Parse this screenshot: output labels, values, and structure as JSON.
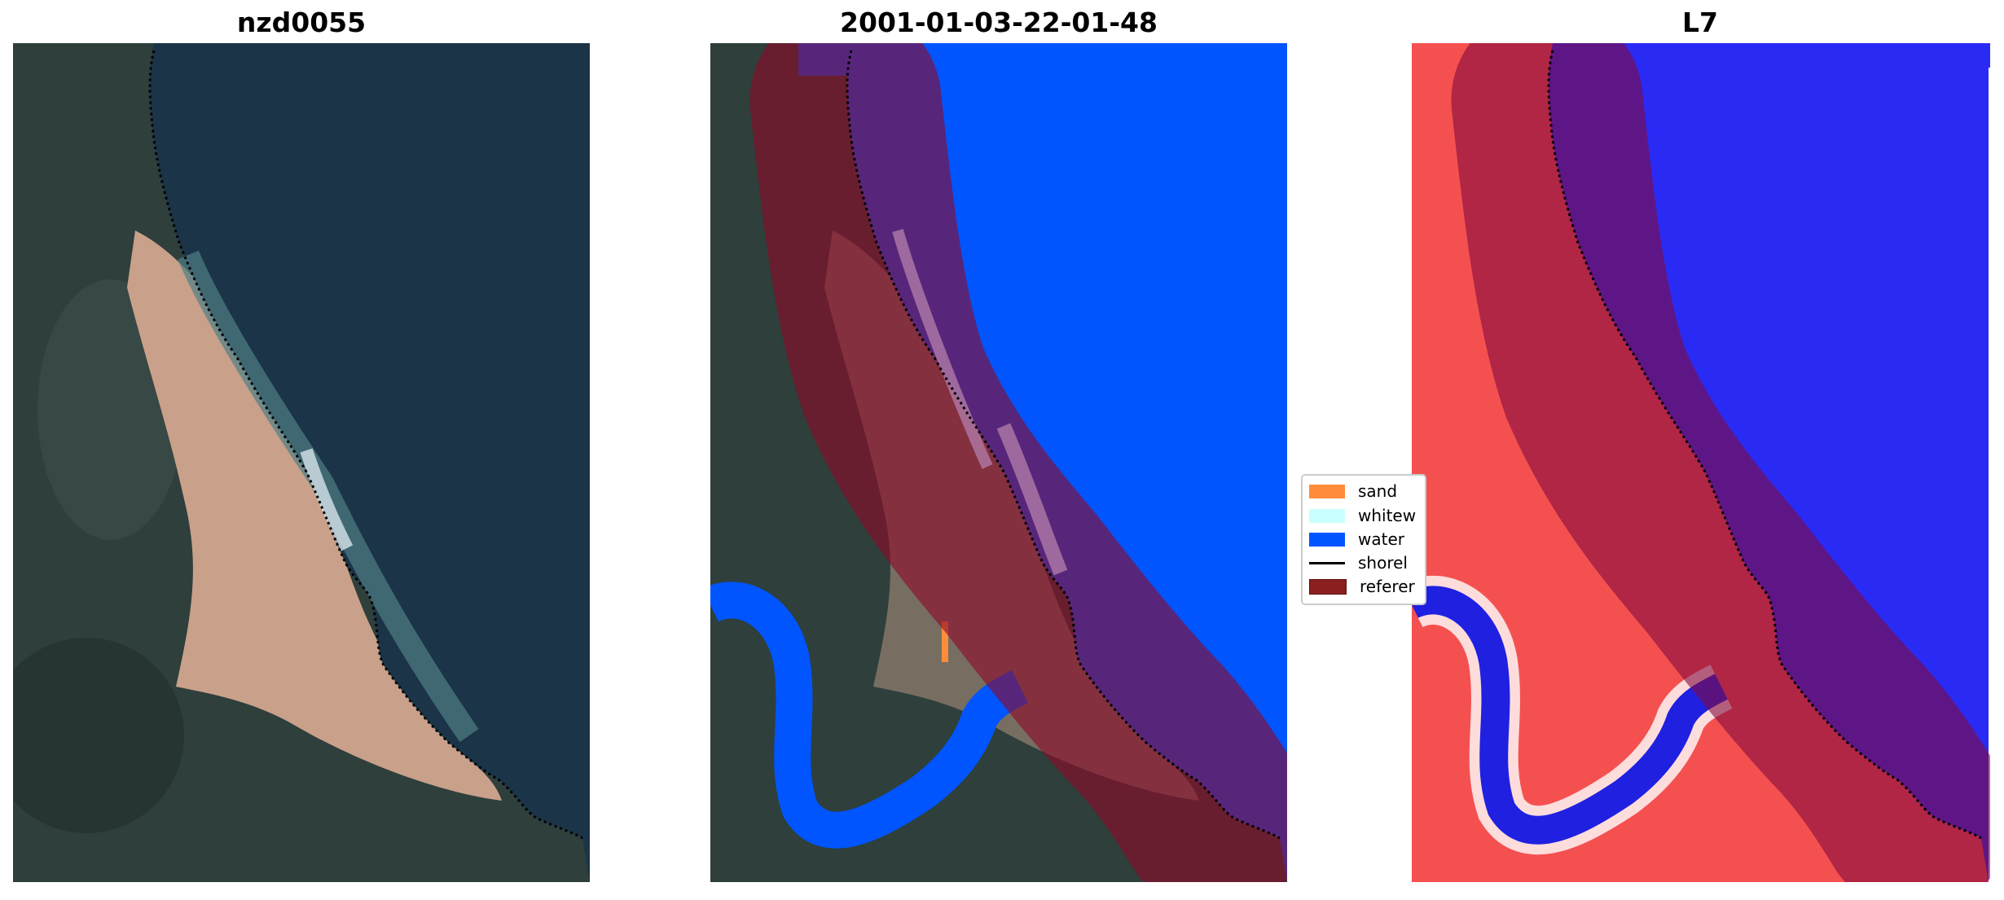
{
  "panels": [
    {
      "title": "nzd0055",
      "kind": "rgb-image"
    },
    {
      "title": "2001-01-03-22-01-48",
      "kind": "classified-image"
    },
    {
      "title": "L7",
      "kind": "index-image"
    }
  ],
  "legend": {
    "items": [
      {
        "label": "sand",
        "color": "#ff8c3a"
      },
      {
        "label": "whitew",
        "color": "#c8ffff"
      },
      {
        "label": "water",
        "color": "#0055ff"
      },
      {
        "label": "shorel",
        "color": "#000000"
      },
      {
        "label": "referer",
        "color": "#8b2020"
      }
    ]
  }
}
